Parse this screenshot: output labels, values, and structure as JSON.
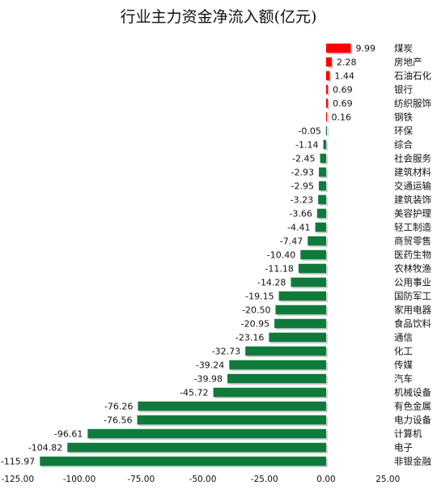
{
  "chart_data": {
    "type": "bar",
    "orientation": "horizontal",
    "title": "行业主力资金净流入额(亿元)",
    "xlabel": "",
    "ylabel": "",
    "xlim": [
      -125,
      25
    ],
    "xticks": [
      "-125.00",
      "-100.00",
      "-75.00",
      "-50.00",
      "-25.00",
      "0.00",
      "25.00"
    ],
    "positive_color": "#ff0000",
    "negative_color": "#107a3c",
    "grid": false,
    "legend": "none",
    "categories": [
      "煤炭",
      "房地产",
      "石油石化",
      "银行",
      "纺织服饰",
      "钢铁",
      "环保",
      "综合",
      "社会服务",
      "建筑材料",
      "交通运输",
      "建筑装饰",
      "美容护理",
      "轻工制造",
      "商贸零售",
      "医药生物",
      "农林牧渔",
      "公用事业",
      "国防军工",
      "家用电器",
      "食品饮料",
      "通信",
      "化工",
      "传媒",
      "汽车",
      "机械设备",
      "有色金属",
      "电力设备",
      "计算机",
      "电子",
      "非银金融"
    ],
    "values": [
      9.99,
      2.28,
      1.44,
      0.69,
      0.69,
      0.16,
      -0.05,
      -1.14,
      -2.45,
      -2.93,
      -2.95,
      -3.23,
      -3.66,
      -4.41,
      -7.47,
      -10.4,
      -11.18,
      -14.28,
      -19.15,
      -20.5,
      -20.95,
      -23.16,
      -32.73,
      -39.24,
      -39.98,
      -45.72,
      -76.26,
      -76.56,
      -96.61,
      -104.82,
      -115.97
    ],
    "value_labels": [
      "9.99",
      "2.28",
      "1.44",
      "0.69",
      "0.69",
      "0.16",
      "-0.05",
      "-1.14",
      "-2.45",
      "-2.93",
      "-2.95",
      "-3.23",
      "-3.66",
      "-4.41",
      "-7.47",
      "-10.40",
      "-11.18",
      "-14.28",
      "-19.15",
      "-20.50",
      "-20.95",
      "-23.16",
      "-32.73",
      "-39.24",
      "-39.98",
      "-45.72",
      "-76.26",
      "-76.56",
      "-96.61",
      "-104.82",
      "-115.97"
    ]
  }
}
